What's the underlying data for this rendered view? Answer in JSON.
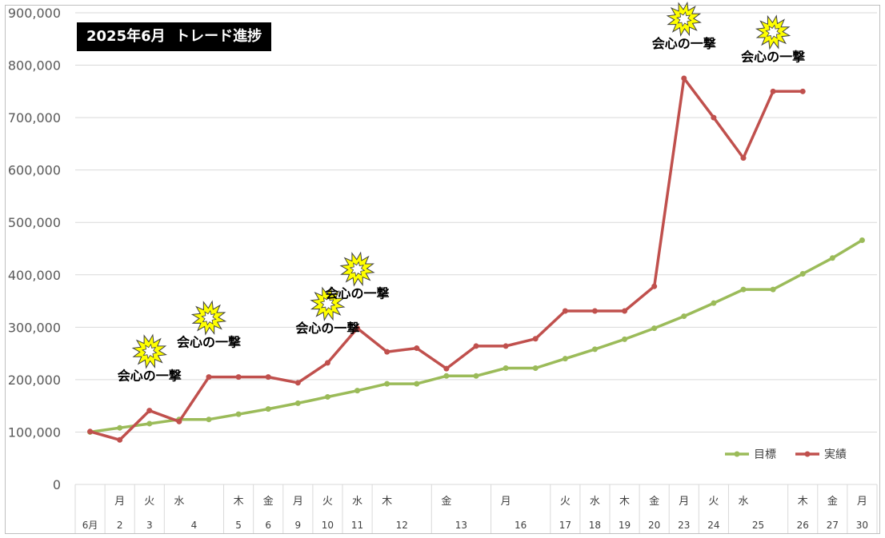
{
  "chart_data": {
    "type": "line",
    "title": "2025年6月  トレード進捗",
    "ylim": [
      0,
      900000
    ],
    "y_ticks": [
      "0",
      "100,000",
      "200,000",
      "300,000",
      "400,000",
      "500,000",
      "600,000",
      "700,000",
      "800,000",
      "900,000"
    ],
    "grid": true,
    "legend_position": "bottom-right",
    "x_rows": {
      "weekday": [
        "",
        "月",
        "火",
        "水",
        "",
        "木",
        "金",
        "月",
        "火",
        "水",
        "木",
        "",
        "金",
        "",
        "月",
        "",
        "火",
        "水",
        "木",
        "金",
        "月",
        "火",
        "水",
        "",
        "木",
        "金",
        "月"
      ],
      "day_groups": [
        {
          "label": "6月",
          "span": 1
        },
        {
          "label": "2",
          "span": 1
        },
        {
          "label": "3",
          "span": 1
        },
        {
          "label": "4",
          "span": 2
        },
        {
          "label": "5",
          "span": 1
        },
        {
          "label": "6",
          "span": 1
        },
        {
          "label": "9",
          "span": 1
        },
        {
          "label": "10",
          "span": 1
        },
        {
          "label": "11",
          "span": 1
        },
        {
          "label": "12",
          "span": 2
        },
        {
          "label": "13",
          "span": 2
        },
        {
          "label": "16",
          "span": 2
        },
        {
          "label": "17",
          "span": 1
        },
        {
          "label": "18",
          "span": 1
        },
        {
          "label": "19",
          "span": 1
        },
        {
          "label": "20",
          "span": 1
        },
        {
          "label": "23",
          "span": 1
        },
        {
          "label": "24",
          "span": 1
        },
        {
          "label": "25",
          "span": 2
        },
        {
          "label": "26",
          "span": 1
        },
        {
          "label": "27",
          "span": 1
        },
        {
          "label": "30",
          "span": 1
        }
      ]
    },
    "series": [
      {
        "name": "目標",
        "color": "#9bbb59",
        "values": [
          100000,
          108000,
          116000,
          124000,
          124000,
          134000,
          144000,
          155000,
          167000,
          179000,
          192000,
          192000,
          207000,
          207000,
          222000,
          222000,
          240000,
          258000,
          277000,
          298000,
          321000,
          346000,
          372000,
          372000,
          402000,
          432000,
          466000
        ]
      },
      {
        "name": "実績",
        "color": "#c0504d",
        "values": [
          101000,
          85000,
          141000,
          120000,
          205000,
          205000,
          205000,
          194000,
          232000,
          298000,
          253000,
          260000,
          221000,
          264000,
          264000,
          278000,
          331000,
          331000,
          331000,
          378000,
          775000,
          700000,
          623000,
          750000,
          750000
        ]
      }
    ],
    "annotations": [
      {
        "text": "会心の一撃",
        "index": 2,
        "value": 141000
      },
      {
        "text": "会心の一撃",
        "index": 4,
        "value": 205000
      },
      {
        "text": "会心の一撃",
        "index": 8,
        "value": 232000
      },
      {
        "text": "会心の一撃",
        "index": 9,
        "value": 298000
      },
      {
        "text": "会心の一撃",
        "index": 20,
        "value": 775000
      },
      {
        "text": "会心の一撃",
        "index": 23,
        "value": 750000
      }
    ]
  }
}
